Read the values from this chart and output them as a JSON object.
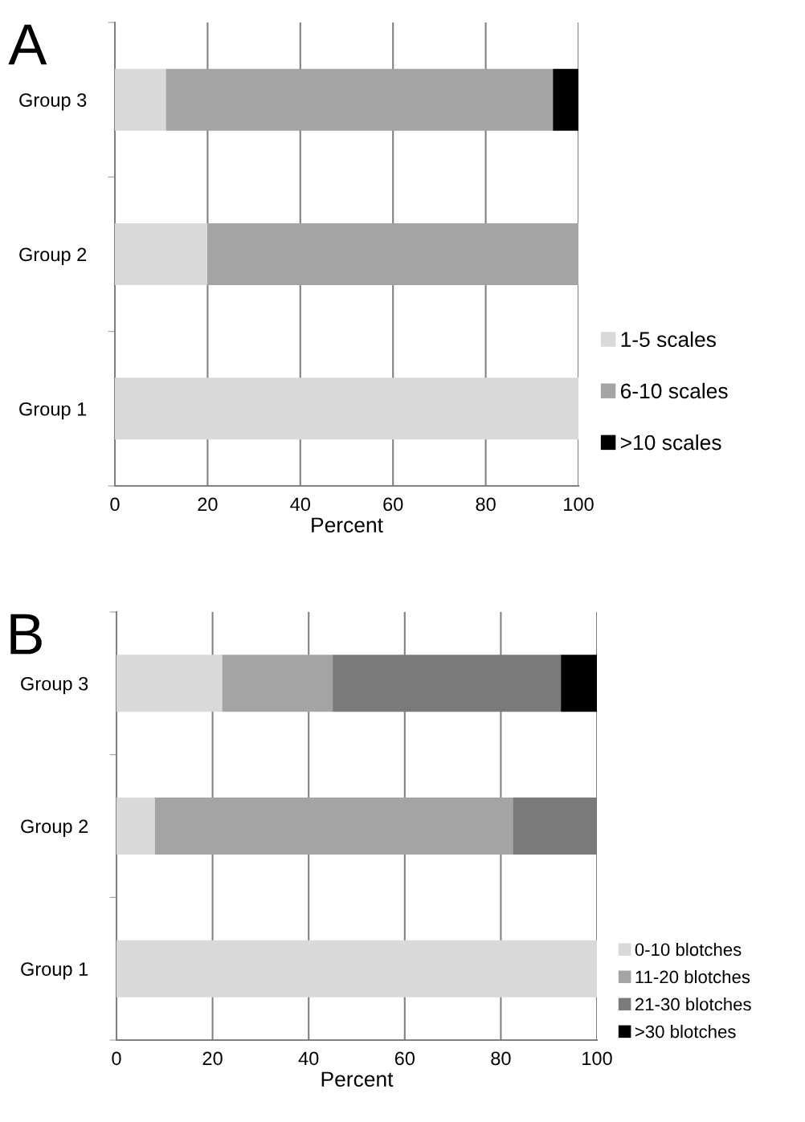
{
  "chart_data": [
    {
      "type": "bar",
      "orientation": "horizontal",
      "stacked": true,
      "title": "A",
      "xlabel": "Percent",
      "categories": [
        "Group 3",
        "Group 2",
        "Group 1"
      ],
      "series": [
        {
          "name": "1-5 scales",
          "color": "#d9d9d9",
          "values": [
            11,
            20,
            100
          ]
        },
        {
          "name": "6-10 scales",
          "color": "#a4a4a4",
          "values": [
            83.5,
            80,
            0
          ]
        },
        {
          "name": ">10 scales",
          "color": "#000000",
          "values": [
            5.5,
            0,
            0
          ]
        }
      ],
      "xlim": [
        0,
        100
      ],
      "xticks": [
        0,
        20,
        40,
        60,
        80,
        100
      ],
      "grid": "x",
      "legend": "right"
    },
    {
      "type": "bar",
      "orientation": "horizontal",
      "stacked": true,
      "title": "B",
      "xlabel": "Percent",
      "categories": [
        "Group 3",
        "Group 2",
        "Group 1"
      ],
      "series": [
        {
          "name": "0-10 blotches",
          "color": "#d9d9d9",
          "values": [
            22,
            8,
            100
          ]
        },
        {
          "name": "11-20 blotches",
          "color": "#a4a4a4",
          "values": [
            23,
            74.5,
            0
          ]
        },
        {
          "name": "21-30 blotches",
          "color": "#7a7a7a",
          "values": [
            47.5,
            17.5,
            0
          ]
        },
        {
          "name": ">30 blotches",
          "color": "#000000",
          "values": [
            7.5,
            0,
            0
          ]
        }
      ],
      "xlim": [
        0,
        100
      ],
      "xticks": [
        0,
        20,
        40,
        60,
        80,
        100
      ],
      "grid": "x",
      "legend": "bottom right"
    }
  ]
}
